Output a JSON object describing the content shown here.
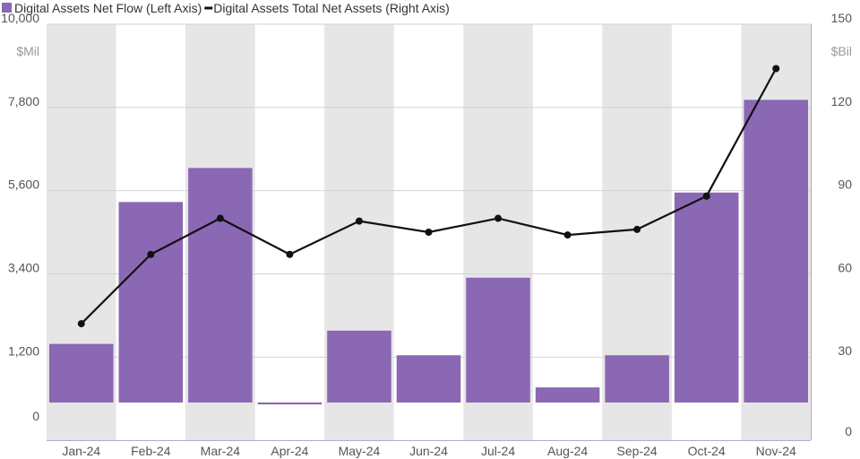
{
  "colors": {
    "bar": "#8a68b3",
    "line": "#111111",
    "band": "#e6e6e6",
    "grid": "#d2d2d2",
    "axis": "#b9a3d6"
  },
  "chart_data": {
    "type": "bar",
    "legend": [
      {
        "label": "Digital Assets Net Flow (Left Axis)",
        "marker": "square",
        "color": "#8a68b3"
      },
      {
        "label": "Digital Assets Total Net Assets (Right Axis)",
        "marker": "line",
        "color": "#111111"
      }
    ],
    "categories": [
      "Jan-24",
      "Feb-24",
      "Mar-24",
      "Apr-24",
      "May-24",
      "Jun-24",
      "Jul-24",
      "Aug-24",
      "Sep-24",
      "Oct-24",
      "Nov-24"
    ],
    "left_axis": {
      "unit": "$Mil",
      "ticks": [
        "10,000",
        "7,800",
        "5,600",
        "3,400",
        "1,200",
        "0"
      ],
      "tick_values": [
        10000,
        7800,
        5600,
        3400,
        1200,
        0
      ]
    },
    "right_axis": {
      "unit": "$Bil",
      "ticks": [
        "150",
        "120",
        "90",
        "60",
        "30",
        "0"
      ],
      "tick_values": [
        150,
        120,
        90,
        60,
        30,
        0
      ]
    },
    "series": [
      {
        "name": "Digital Assets Net Flow (Left Axis)",
        "type": "bar",
        "axis": "left",
        "values": [
          1550,
          5300,
          6200,
          -50,
          1900,
          1250,
          3300,
          400,
          1250,
          5550,
          8000
        ]
      },
      {
        "name": "Digital Assets Total Net Assets (Right Axis)",
        "type": "line",
        "axis": "right",
        "values": [
          42,
          67,
          80,
          67,
          79,
          75,
          80,
          74,
          76,
          88,
          134
        ]
      }
    ],
    "grid": true,
    "legend_position": "top-left"
  }
}
